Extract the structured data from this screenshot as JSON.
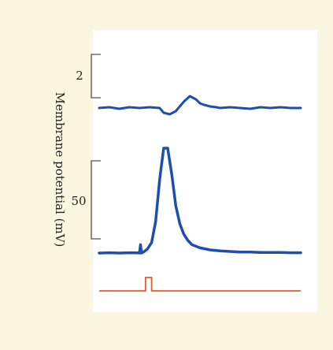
{
  "chart_data": {
    "type": "line",
    "ylabel": "Membrane potential (mV)",
    "scale_bars": [
      {
        "label": "2",
        "value_mV": 2
      },
      {
        "label": "50",
        "value_mV": 50
      }
    ],
    "traces": {
      "top": {
        "color": "#1f4fae",
        "x": [
          0,
          5,
          10,
          15,
          20,
          25,
          30,
          32,
          35,
          38,
          40,
          42,
          45,
          48,
          50,
          52,
          55,
          58,
          60,
          65,
          70,
          75,
          80,
          85,
          90,
          95,
          100
        ],
        "y": [
          0,
          0.05,
          -0.05,
          0.05,
          0,
          0.05,
          0,
          -0.3,
          -0.4,
          -0.2,
          0.1,
          0.4,
          0.75,
          0.55,
          0.3,
          0.2,
          0.1,
          0.05,
          0,
          0.05,
          0,
          -0.05,
          0.05,
          0,
          0.05,
          0,
          0
        ]
      },
      "bottom": {
        "color": "#1f4fae",
        "x": [
          0,
          5,
          10,
          15,
          19,
          20,
          20.5,
          21,
          22,
          24,
          26,
          28,
          30,
          32,
          34,
          36,
          38,
          40,
          42,
          44,
          46,
          50,
          55,
          60,
          65,
          70,
          75,
          80,
          85,
          90,
          95,
          100
        ],
        "y": [
          0,
          0.3,
          0,
          0.3,
          0.2,
          0,
          8,
          0,
          1,
          4,
          10,
          30,
          70,
          100,
          100,
          75,
          45,
          28,
          18,
          12,
          8,
          5,
          3,
          2,
          1.5,
          1,
          1,
          0.5,
          0.5,
          0.5,
          0.3,
          0.3
        ]
      },
      "stimulus": {
        "color": "#e85a2a",
        "x": [
          0,
          23,
          23,
          26,
          26,
          100
        ],
        "y": [
          0,
          0,
          1,
          1,
          0,
          0
        ]
      }
    }
  },
  "colors": {
    "background": "#fbf6e0",
    "panel": "#ffffff",
    "trace": "#1f4fae",
    "stimulus": "#e85a2a"
  }
}
